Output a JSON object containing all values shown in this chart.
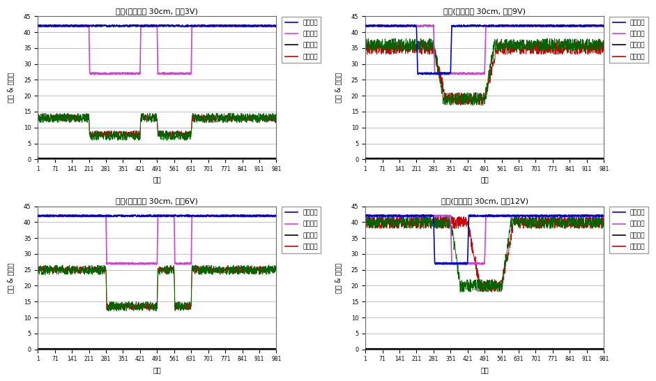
{
  "subplots": [
    {
      "title": "전방(기준높이 30cm, 속더3V)",
      "blue_base": 42,
      "blue_dip": 42,
      "blue_dip_ranges": [],
      "pink_base": 42,
      "pink_dip": 27,
      "pink_dip_ranges": [
        [
          211,
          421
        ],
        [
          491,
          631
        ]
      ],
      "green_base": 13,
      "green_dip": 7.5,
      "green_dip_ranges": [
        [
          211,
          421
        ],
        [
          491,
          631
        ]
      ],
      "red_base": 13,
      "red_dip": 8,
      "red_dip_ranges": [
        [
          211,
          421
        ],
        [
          491,
          631
        ]
      ],
      "green_noise": 1.5,
      "red_noise": 1.0,
      "blue_noise": 0.3,
      "pink_noise": 0.3
    },
    {
      "title": "전방(기준높이 30cm, 속더9V)",
      "blue_base": 42,
      "blue_dip": 27,
      "blue_dip_ranges": [
        [
          211,
          351
        ]
      ],
      "pink_base": 42,
      "pink_dip": 27,
      "pink_dip_ranges": [
        [
          281,
          491
        ]
      ],
      "green_base": 36,
      "green_dip": 19,
      "green_dip_ranges": [
        [
          281,
          491
        ]
      ],
      "red_base": 35,
      "red_dip": 19,
      "red_dip_ranges": [
        [
          281,
          491
        ]
      ],
      "green_noise": 2.0,
      "red_noise": 2.0,
      "blue_noise": 0.3,
      "pink_noise": 0.3
    },
    {
      "title": "전방(기준높이 30cm, 속더6V)",
      "blue_base": 42,
      "blue_dip": 42,
      "blue_dip_ranges": [],
      "pink_base": 42,
      "pink_dip": 27,
      "pink_dip_ranges": [
        [
          281,
          491
        ],
        [
          561,
          631
        ]
      ],
      "green_base": 25,
      "green_dip": 13.5,
      "green_dip_ranges": [
        [
          281,
          491
        ],
        [
          561,
          631
        ]
      ],
      "red_base": 25,
      "red_dip": 13.5,
      "red_dip_ranges": [
        [
          281,
          491
        ],
        [
          561,
          631
        ]
      ],
      "green_noise": 1.5,
      "red_noise": 1.0,
      "blue_noise": 0.3,
      "pink_noise": 0.3
    },
    {
      "title": "전방(기준높이 30cm, 속더12V)",
      "blue_base": 42,
      "blue_dip": 27,
      "blue_dip_ranges": [
        [
          281,
          421
        ]
      ],
      "pink_base": 42,
      "pink_dip": 27,
      "pink_dip_ranges": [
        [
          351,
          491
        ]
      ],
      "green_base": 40,
      "green_dip": 20,
      "green_dip_ranges": [
        [
          351,
          561
        ]
      ],
      "red_base": 40,
      "red_dip": 20,
      "red_dip_ranges": [
        [
          421,
          561
        ]
      ],
      "green_noise": 2.0,
      "red_noise": 2.0,
      "blue_noise": 0.3,
      "pink_noise": 0.3
    }
  ],
  "colors": {
    "blue": "#0000CC",
    "pink": "#CC44CC",
    "black": "#000000",
    "red": "#CC0000",
    "dark_green": "#006400"
  },
  "ylabel": "거리 & 회전수",
  "xlabel": "시간",
  "legend_labels": [
    "전방좌측",
    "전방우측",
    "좌측모터",
    "우측모터"
  ],
  "ylim": [
    0,
    45
  ],
  "xticks": [
    1,
    71,
    141,
    211,
    281,
    351,
    421,
    491,
    561,
    631,
    701,
    771,
    841,
    911,
    981
  ],
  "yticks": [
    0,
    5,
    10,
    15,
    20,
    25,
    30,
    35,
    40,
    45
  ],
  "background_color": "#FFFFFF"
}
